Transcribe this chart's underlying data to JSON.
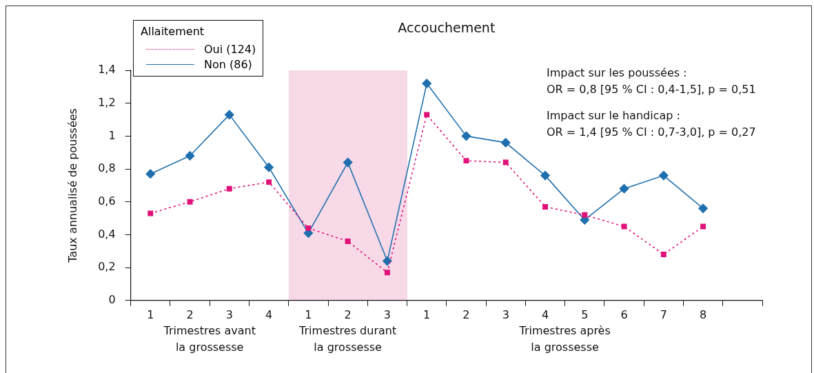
{
  "chart_data": {
    "type": "line",
    "title": "Accouchement",
    "ylabel": "Taux annualisé de poussées",
    "legend_title": "Allaitement",
    "legend": "top left",
    "categories": [
      "1",
      "2",
      "3",
      "4",
      "1",
      "2",
      "3",
      "1",
      "2",
      "3",
      "4",
      "5",
      "6",
      "7",
      "8",
      null
    ],
    "series": [
      {
        "name": "Oui (124)",
        "color": "#e0127a",
        "marker": "square",
        "line_style": "dotted",
        "values": [
          0.53,
          0.6,
          0.68,
          0.72,
          0.44,
          0.36,
          0.17,
          1.13,
          0.85,
          0.84,
          0.57,
          0.52,
          0.45,
          0.28,
          0.45,
          null
        ]
      },
      {
        "name": "Non (86)",
        "color": "#1f6fae",
        "marker": "diamond",
        "line_style": "solid",
        "values": [
          0.77,
          0.88,
          1.13,
          0.81,
          0.41,
          0.84,
          0.24,
          1.32,
          1.0,
          0.96,
          0.76,
          0.49,
          0.68,
          0.76,
          0.56,
          null
        ]
      }
    ],
    "ylim": [
      0,
      1.4
    ],
    "yticks": [
      0,
      {
        "value": 0.2,
        "label": "0,2"
      },
      {
        "value": 0.4,
        "label": "0,4"
      },
      {
        "value": 0.6,
        "label": "0,6"
      },
      {
        "value": 0.8,
        "label": "0,8"
      },
      1,
      {
        "value": 1.2,
        "label": "1,2"
      },
      {
        "value": 1.4,
        "label": "1,4"
      }
    ],
    "grid": false,
    "annotations": [
      "Trimestres avant\nla grossesse",
      "Trimestres durant\nla grossesse",
      "Trimestres après\nla grossesse",
      "Impact sur les poussées :",
      "OR = 0,8 [95 % CI : 0,4-1,5], p = 0,51",
      "Impact sur le handicap :",
      "OR = 1,4 [95 % CI : 0,7-3,0], p = 0,27"
    ]
  }
}
